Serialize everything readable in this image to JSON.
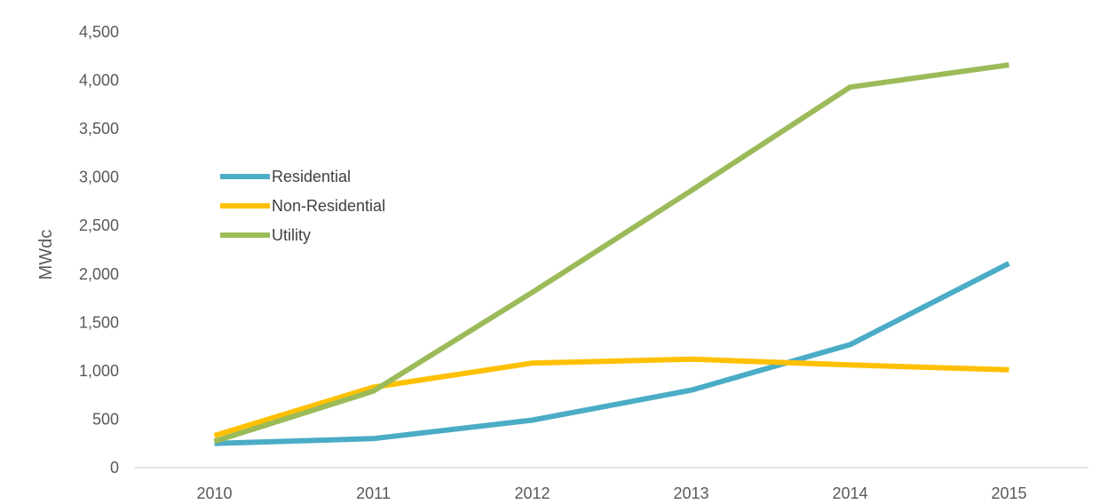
{
  "chart_data": {
    "type": "line",
    "title": "",
    "xlabel": "",
    "ylabel": "MWdc",
    "categories": [
      "2010",
      "2011",
      "2012",
      "2013",
      "2014",
      "2015"
    ],
    "ylim": [
      0,
      4500
    ],
    "yticks": [
      0,
      500,
      1000,
      1500,
      2000,
      2500,
      3000,
      3500,
      4000,
      4500
    ],
    "ytick_labels": [
      "0",
      "500",
      "1,000",
      "1,500",
      "2,000",
      "2,500",
      "3,000",
      "3,500",
      "4,000",
      "4,500"
    ],
    "grid": false,
    "legend_position": "left",
    "series": [
      {
        "name": "Residential",
        "color": "#4BACC6",
        "values": [
          250,
          300,
          490,
          800,
          1270,
          2110
        ]
      },
      {
        "name": "Non-Residential",
        "color": "#FFC000",
        "values": [
          330,
          830,
          1080,
          1120,
          1060,
          1010
        ]
      },
      {
        "name": "Utility",
        "color": "#9BBB59",
        "values": [
          270,
          790,
          1810,
          2860,
          3930,
          4160
        ]
      }
    ]
  }
}
